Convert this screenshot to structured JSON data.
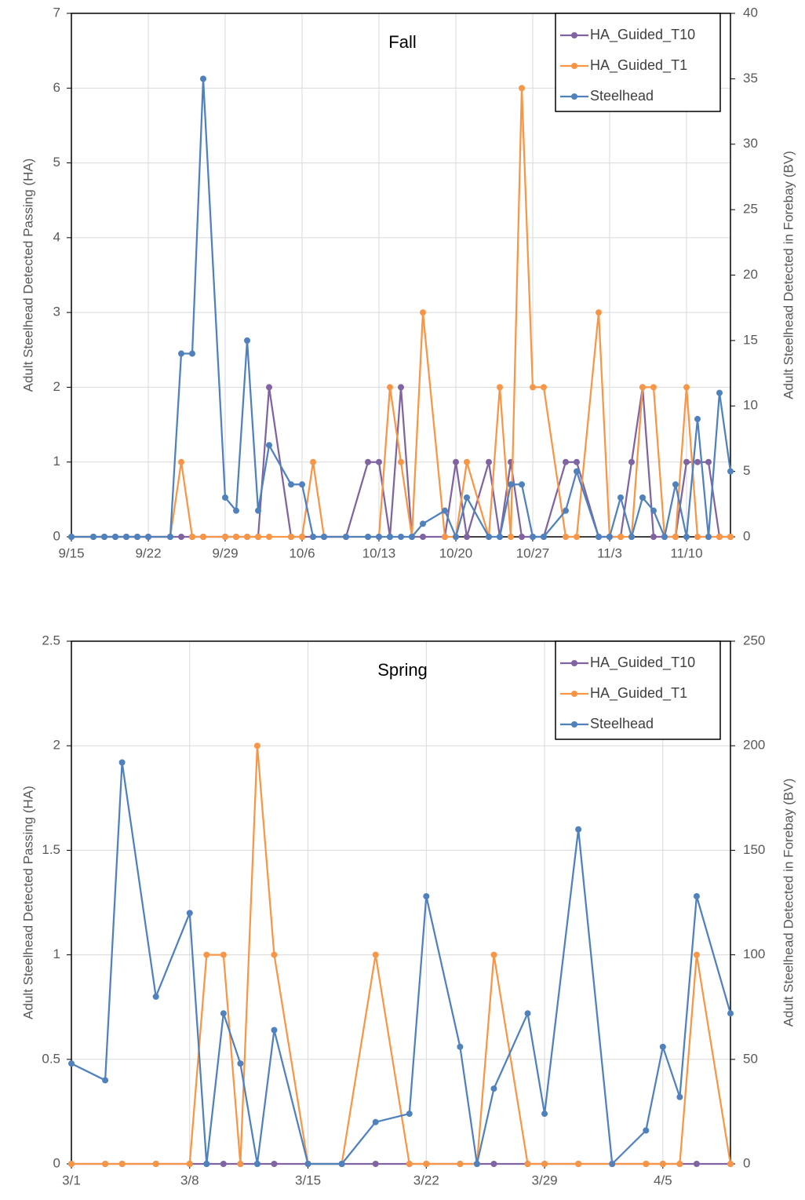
{
  "chart_data": [
    {
      "type": "line",
      "title": "Fall",
      "y_label": "Adult Steelhead Detected Passing (HA)",
      "y2_label": "Adult Steelhead Detected in Forebay (BV)",
      "xlim": [
        0,
        60
      ],
      "xticks": [
        {
          "value": 0,
          "label": "9/15"
        },
        {
          "value": 7,
          "label": "9/22"
        },
        {
          "value": 14,
          "label": "9/29"
        },
        {
          "value": 21,
          "label": "10/6"
        },
        {
          "value": 28,
          "label": "10/13"
        },
        {
          "value": 35,
          "label": "10/20"
        },
        {
          "value": 42,
          "label": "10/27"
        },
        {
          "value": 49,
          "label": "11/3"
        },
        {
          "value": 56,
          "label": "11/10"
        }
      ],
      "ylim": [
        0,
        7
      ],
      "yticks": [
        0,
        1,
        2,
        3,
        4,
        5,
        6,
        7
      ],
      "y2lim": [
        0,
        40
      ],
      "y2ticks": [
        0,
        5,
        10,
        15,
        20,
        25,
        30,
        35,
        40
      ],
      "grid": true,
      "legend": "upper right",
      "series": [
        {
          "name": "HA_Guided_T10",
          "color": "#8064a2",
          "axis": "y",
          "x": [
            0,
            2,
            3,
            4,
            5,
            6,
            7,
            9,
            10,
            11,
            12,
            14,
            15,
            16,
            17,
            18,
            20,
            21,
            22,
            23,
            25,
            27,
            28,
            29,
            30,
            31,
            32,
            34,
            35,
            36,
            38,
            39,
            40,
            41,
            42,
            43,
            45,
            46,
            48,
            49,
            50,
            51,
            52,
            53,
            54,
            55,
            56,
            57,
            58,
            59,
            60
          ],
          "values": [
            0,
            0,
            0,
            0,
            0,
            0,
            0,
            0,
            0,
            0,
            0,
            0,
            0,
            0,
            0,
            2,
            0,
            0,
            0,
            0,
            0,
            1,
            1,
            0,
            2,
            0,
            0,
            0,
            1,
            0,
            1,
            0,
            1,
            0,
            0,
            0,
            1,
            1,
            0,
            0,
            0,
            1,
            2,
            0,
            0,
            0,
            1,
            1,
            1,
            0,
            0
          ]
        },
        {
          "name": "HA_Guided_T1",
          "color": "#f79646",
          "axis": "y",
          "x": [
            0,
            2,
            3,
            4,
            5,
            6,
            7,
            9,
            10,
            11,
            12,
            14,
            15,
            16,
            17,
            18,
            20,
            21,
            22,
            23,
            25,
            27,
            28,
            29,
            30,
            31,
            32,
            34,
            35,
            36,
            38,
            39,
            40,
            41,
            42,
            43,
            45,
            46,
            48,
            49,
            50,
            51,
            52,
            53,
            54,
            55,
            56,
            57,
            58,
            59,
            60
          ],
          "values": [
            0,
            0,
            0,
            0,
            0,
            0,
            0,
            0,
            1,
            0,
            0,
            0,
            0,
            0,
            0,
            0,
            0,
            0,
            1,
            0,
            0,
            0,
            0,
            2,
            1,
            0,
            3,
            0,
            0,
            1,
            0,
            2,
            0,
            6,
            2,
            2,
            0,
            0,
            3,
            0,
            0,
            0,
            2,
            2,
            0,
            0,
            2,
            0,
            0,
            0,
            0
          ]
        },
        {
          "name": "Steelhead",
          "color": "#4f81bd",
          "axis": "y2",
          "x": [
            0,
            2,
            3,
            4,
            5,
            6,
            7,
            9,
            10,
            11,
            12,
            14,
            15,
            16,
            17,
            18,
            20,
            21,
            22,
            23,
            25,
            27,
            28,
            29,
            30,
            31,
            32,
            34,
            35,
            36,
            38,
            39,
            40,
            41,
            42,
            43,
            45,
            46,
            48,
            49,
            50,
            51,
            52,
            53,
            54,
            55,
            56,
            57,
            58,
            59,
            60
          ],
          "values": [
            0,
            0,
            0,
            0,
            0,
            0,
            0,
            0,
            14,
            14,
            35,
            3,
            2,
            15,
            2,
            7,
            4,
            4,
            0,
            0,
            0,
            0,
            0,
            0,
            0,
            0,
            1,
            2,
            0,
            3,
            0,
            0,
            4,
            4,
            0,
            0,
            2,
            5,
            0,
            0,
            3,
            0,
            3,
            2,
            0,
            4,
            0,
            9,
            0,
            11,
            5
          ]
        }
      ]
    },
    {
      "type": "line",
      "title": "Spring",
      "y_label": "Adult Steelhead Detected Passing (HA)",
      "y2_label": "Adult Steelhead Detected in Forebay (BV)",
      "xlim": [
        0,
        39
      ],
      "xticks": [
        {
          "value": 0,
          "label": "3/1"
        },
        {
          "value": 7,
          "label": "3/8"
        },
        {
          "value": 14,
          "label": "3/15"
        },
        {
          "value": 21,
          "label": "3/22"
        },
        {
          "value": 28,
          "label": "3/29"
        },
        {
          "value": 35,
          "label": "4/5"
        }
      ],
      "ylim": [
        0,
        2.5
      ],
      "yticks": [
        0,
        0.5,
        1,
        1.5,
        2,
        2.5
      ],
      "y2lim": [
        0,
        250
      ],
      "y2ticks": [
        0,
        50,
        100,
        150,
        200,
        250
      ],
      "grid": true,
      "legend": "upper right",
      "series": [
        {
          "name": "HA_Guided_T10",
          "color": "#8064a2",
          "axis": "y",
          "x": [
            0,
            2,
            3,
            5,
            7,
            8,
            9,
            10,
            11,
            12,
            14,
            16,
            18,
            20,
            21,
            23,
            24,
            25,
            27,
            28,
            30,
            32,
            34,
            35,
            36,
            37,
            39
          ],
          "values": [
            0,
            0,
            0,
            0,
            0,
            0,
            0,
            0,
            0,
            0,
            0,
            0,
            0,
            0,
            0,
            0,
            0,
            0,
            0,
            0,
            0,
            0,
            0,
            0,
            0,
            0,
            0
          ]
        },
        {
          "name": "HA_Guided_T1",
          "color": "#f79646",
          "axis": "y",
          "x": [
            0,
            2,
            3,
            5,
            7,
            8,
            9,
            10,
            11,
            12,
            14,
            16,
            18,
            20,
            21,
            23,
            24,
            25,
            27,
            28,
            30,
            32,
            34,
            35,
            36,
            37,
            39
          ],
          "values": [
            0,
            0,
            0,
            0,
            0,
            1,
            1,
            0,
            2,
            1,
            0,
            0,
            1,
            0,
            0,
            0,
            0,
            1,
            0,
            0,
            0,
            0,
            0,
            0,
            0,
            1,
            0
          ]
        },
        {
          "name": "Steelhead",
          "color": "#4f81bd",
          "axis": "y2",
          "x": [
            0,
            2,
            3,
            5,
            7,
            8,
            9,
            10,
            11,
            12,
            14,
            16,
            18,
            20,
            21,
            23,
            24,
            25,
            27,
            28,
            30,
            32,
            34,
            35,
            36,
            37,
            39
          ],
          "values": [
            48,
            40,
            192,
            80,
            120,
            0,
            72,
            48,
            0,
            64,
            0,
            0,
            20,
            24,
            128,
            56,
            0,
            36,
            72,
            24,
            160,
            0,
            16,
            56,
            32,
            128,
            72
          ]
        }
      ]
    }
  ]
}
